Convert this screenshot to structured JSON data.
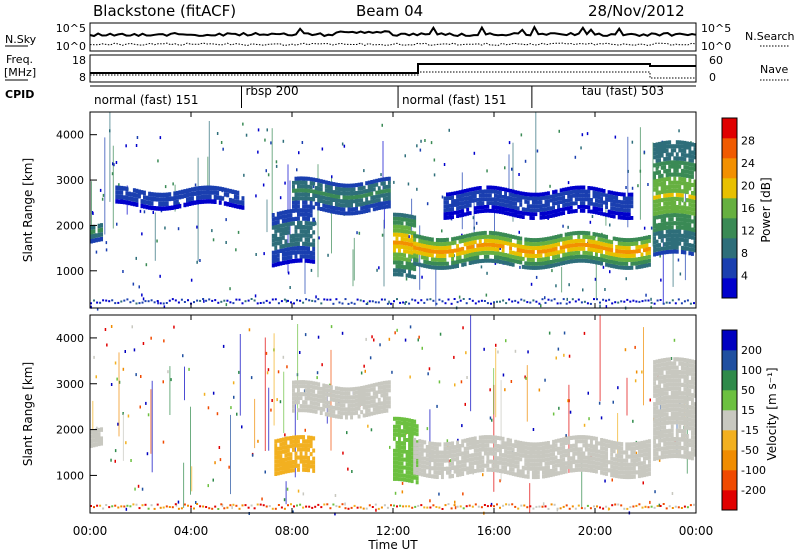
{
  "header": {
    "title": "Blackstone (fitACF)",
    "beam": "Beam 04",
    "date": "28/Nov/2012"
  },
  "panels": {
    "nsky": {
      "label": "N.Sky",
      "right_label": "N.Search",
      "ticks": [
        "10^5",
        "10^0"
      ],
      "right_ticks": [
        "10^5",
        "10^0"
      ]
    },
    "freq": {
      "label_line1": "Freq.",
      "label_line2": "[MHz]",
      "ticks": [
        "18",
        "8"
      ],
      "right_label": "Nave",
      "right_ticks": [
        "60",
        "0"
      ]
    },
    "cpid": {
      "label": "CPID",
      "segments": [
        {
          "text": "normal (fast) 151",
          "start_hour": 0,
          "end_hour": 6
        },
        {
          "text": "rbsp 200",
          "start_hour": 6,
          "end_hour": 12.2
        },
        {
          "text": "normal (fast) 151",
          "start_hour": 12.2,
          "end_hour": 17.5
        },
        {
          "text": "tau (fast) 503",
          "start_hour": 17.5,
          "end_hour": 24
        }
      ]
    },
    "power": {
      "ylabel": "Slant Range [km]",
      "yticks": [
        "4000",
        "3000",
        "2000",
        "1000"
      ],
      "colorbar_label": "Power [dB]",
      "colorbar_ticks": [
        "28",
        "24",
        "20",
        "16",
        "12",
        "8",
        "4"
      ]
    },
    "velocity": {
      "ylabel": "Slant Range [km]",
      "yticks": [
        "4000",
        "3000",
        "2000",
        "1000"
      ],
      "colorbar_label": "Velocity [m s⁻¹]",
      "colorbar_ticks": [
        "200",
        "100",
        "50",
        "15",
        "-15",
        "-50",
        "-100",
        "-200"
      ]
    }
  },
  "xaxis": {
    "label": "Time UT",
    "ticks": [
      "00:00",
      "04:00",
      "08:00",
      "12:00",
      "16:00",
      "20:00",
      "00:00"
    ]
  },
  "colors": {
    "power_scale": [
      "#0000cc",
      "#1a3fb0",
      "#2e6e7a",
      "#3a8a55",
      "#66b040",
      "#e8c000",
      "#f39000",
      "#f05a00",
      "#e00000"
    ],
    "velocity_scale": [
      "#e00000",
      "#f04a00",
      "#f08c00",
      "#f2b020",
      "#c8c8c0",
      "#6cc040",
      "#2f8a4a",
      "#2050a0",
      "#0000c0"
    ]
  },
  "chart_data": [
    {
      "type": "heatmap",
      "title": "Power",
      "xlabel": "Time UT",
      "ylabel": "Slant Range [km]",
      "xlim": [
        0,
        24
      ],
      "ylim": [
        180,
        4500
      ],
      "zlabel": "Power [dB]",
      "zlim": [
        0,
        32
      ],
      "features": [
        {
          "t_start": 0.0,
          "t_end": 0.5,
          "range_start": 1600,
          "range_end": 2000,
          "power_db": 12
        },
        {
          "t_start": 1.0,
          "t_end": 6.0,
          "range_start": 2400,
          "range_end": 2800,
          "power_db": 6
        },
        {
          "t_start": 7.2,
          "t_end": 8.8,
          "range_start": 1100,
          "range_end": 2300,
          "power_db": 10
        },
        {
          "t_start": 8.0,
          "t_end": 11.8,
          "range_start": 2300,
          "range_end": 3000,
          "power_db": 12
        },
        {
          "t_start": 12.0,
          "t_end": 12.8,
          "range_start": 800,
          "range_end": 2200,
          "power_db": 22
        },
        {
          "t_start": 12.8,
          "t_end": 22.2,
          "range_start": 1100,
          "range_end": 1800,
          "power_db": 24
        },
        {
          "t_start": 14.0,
          "t_end": 21.5,
          "range_start": 2200,
          "range_end": 2800,
          "power_db": 6
        },
        {
          "t_start": 22.3,
          "t_end": 24.0,
          "range_start": 1300,
          "range_end": 3800,
          "power_db": 18
        }
      ]
    },
    {
      "type": "heatmap",
      "title": "Velocity",
      "xlabel": "Time UT",
      "ylabel": "Slant Range [km]",
      "xlim": [
        0,
        24
      ],
      "ylim": [
        180,
        4500
      ],
      "zlabel": "Velocity [m s⁻¹]",
      "zlim": [
        -200,
        200
      ],
      "features": [
        {
          "t_start": 0.0,
          "t_end": 0.5,
          "range_start": 1600,
          "range_end": 2000,
          "velocity": 0
        },
        {
          "t_start": 7.3,
          "t_end": 8.8,
          "range_start": 1000,
          "range_end": 1800,
          "velocity": -50
        },
        {
          "t_start": 8.0,
          "t_end": 11.8,
          "range_start": 2300,
          "range_end": 3000,
          "velocity": 0
        },
        {
          "t_start": 12.0,
          "t_end": 12.9,
          "range_start": 800,
          "range_end": 2200,
          "velocity": 40
        },
        {
          "t_start": 12.8,
          "t_end": 22.2,
          "range_start": 1000,
          "range_end": 1800,
          "velocity": 0
        },
        {
          "t_start": 22.3,
          "t_end": 24.0,
          "range_start": 1300,
          "range_end": 3500,
          "velocity": 0
        }
      ]
    }
  ]
}
